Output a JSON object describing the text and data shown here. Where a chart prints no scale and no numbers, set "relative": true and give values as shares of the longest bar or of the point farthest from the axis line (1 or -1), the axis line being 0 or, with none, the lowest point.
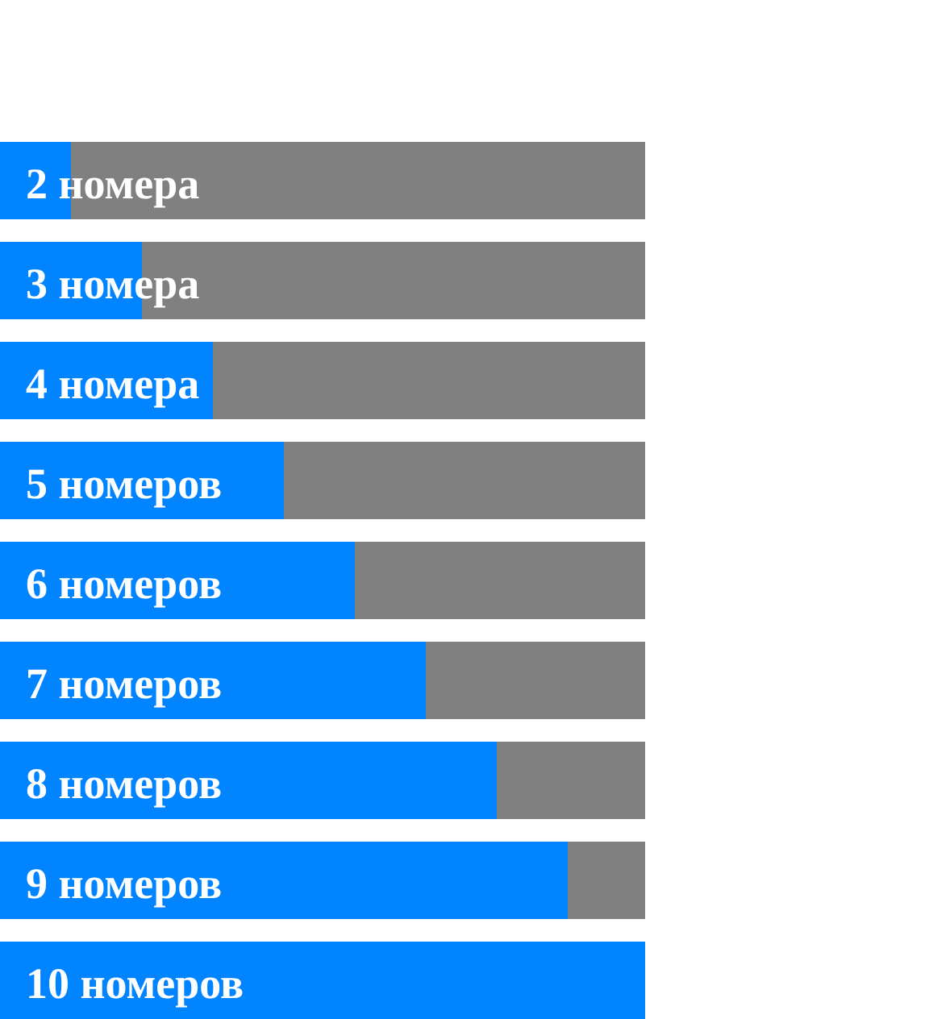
{
  "chart_data": {
    "type": "bar",
    "orientation": "horizontal",
    "stacked": true,
    "relative": true,
    "categories": [
      "2 номера",
      "3 номера",
      "4 номера",
      "5 номеров",
      "6 номеров",
      "7 номеров",
      "8 номеров",
      "9 номеров",
      "10 номеров"
    ],
    "series": [
      {
        "color": "#0084ff",
        "values": [
          0.11,
          0.22,
          0.33,
          0.44,
          0.55,
          0.66,
          0.77,
          0.88,
          1
        ]
      },
      {
        "color": "#808080",
        "values": [
          0.89,
          0.78,
          0.67,
          0.56,
          0.45,
          0.34,
          0.23,
          0.12,
          0
        ]
      }
    ],
    "legend": false
  }
}
